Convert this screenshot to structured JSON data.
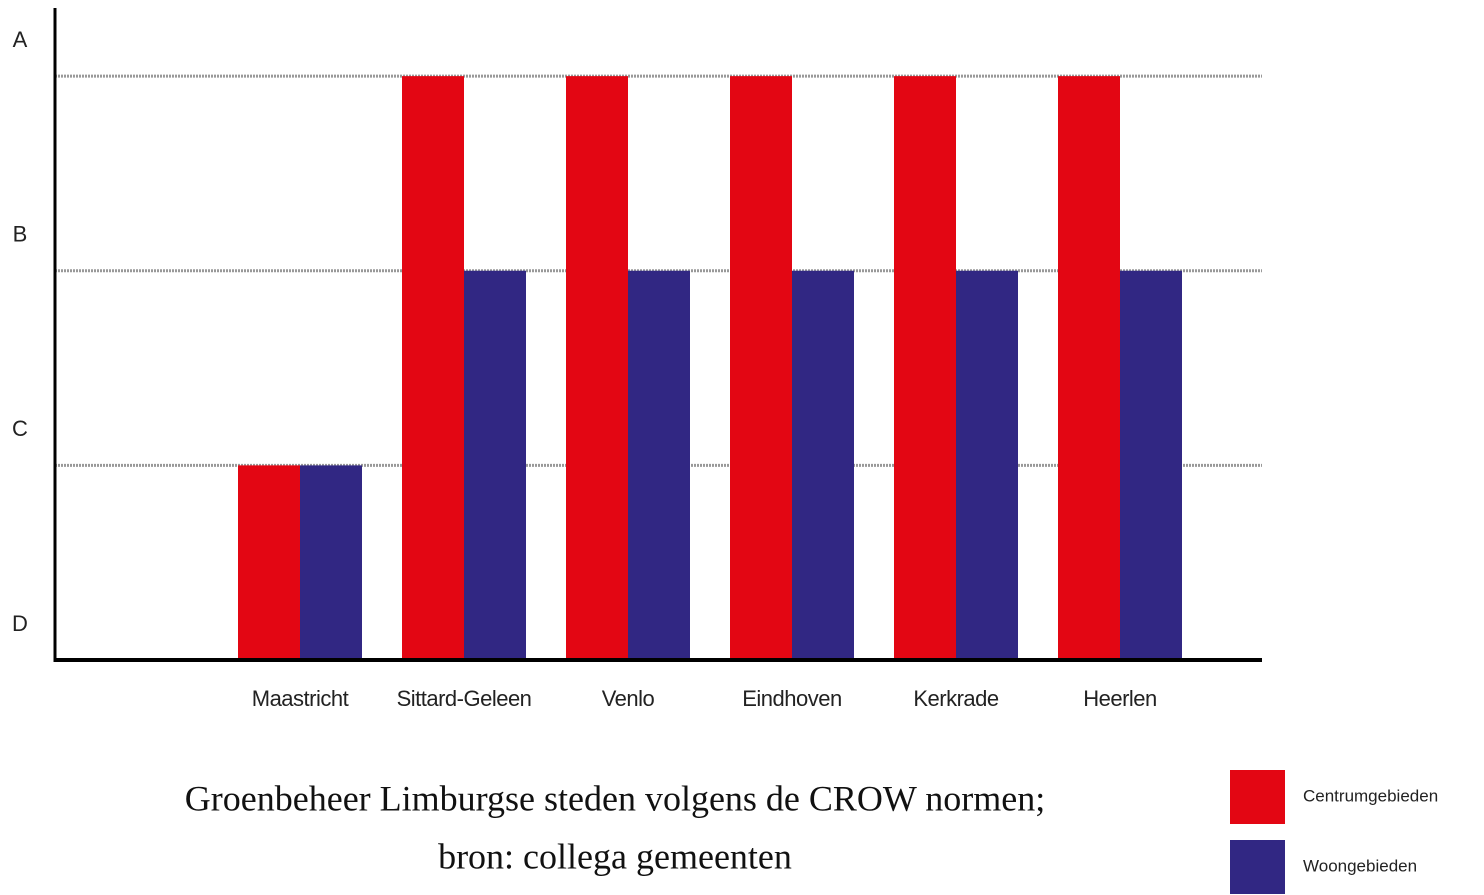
{
  "chart_data": {
    "type": "bar",
    "title": "Groenbeheer Limburgse steden volgens de CROW normen;",
    "subtitle": "bron: collega gemeenten",
    "categories": [
      "Maastricht",
      "Sittard-Geleen",
      "Venlo",
      "Eindhoven",
      "Kerkrade",
      "Heerlen"
    ],
    "series": [
      {
        "name": "Centrumgebieden",
        "color": "#e30613",
        "values": [
          1,
          3,
          3,
          3,
          3,
          3
        ]
      },
      {
        "name": "Woongebieden",
        "color": "#312783",
        "values": [
          1,
          2,
          2,
          2,
          2,
          2
        ]
      }
    ],
    "ylim": [
      0,
      3.35
    ],
    "yticks": [
      {
        "value": 0,
        "label": "D"
      },
      {
        "value": 1,
        "label": "C"
      },
      {
        "value": 2,
        "label": "B"
      },
      {
        "value": 3,
        "label": "A"
      }
    ],
    "grid": true,
    "legend": "bottom-right"
  }
}
